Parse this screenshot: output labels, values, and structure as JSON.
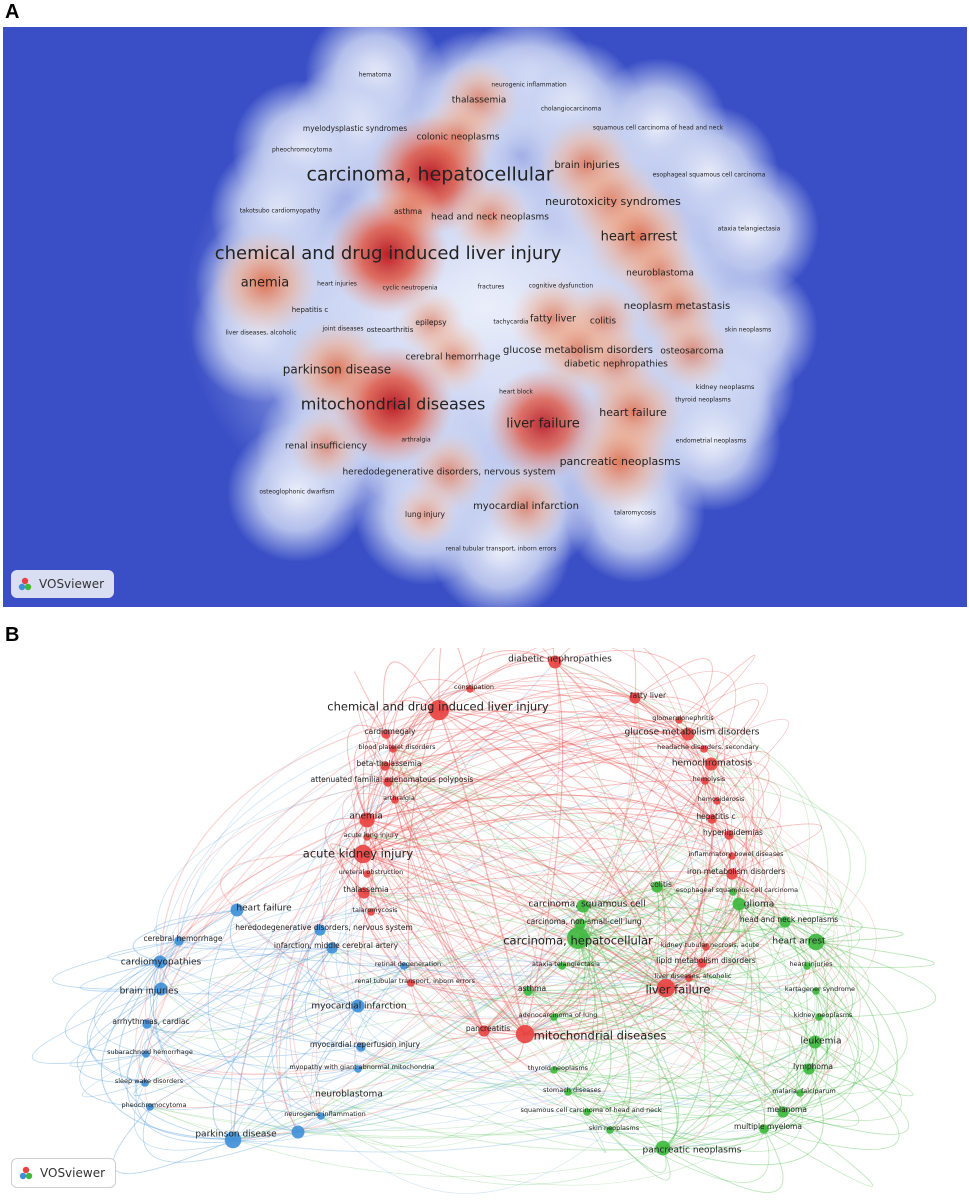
{
  "panel_a": {
    "letter": "A",
    "badge_label": "VOSviewer",
    "terms": [
      {
        "label": "hematoma",
        "size": 6,
        "density": 0.1
      },
      {
        "label": "neurogenic inflammation",
        "size": 6,
        "density": 0.1
      },
      {
        "label": "thalassemia",
        "size": 9,
        "density": 0.55
      },
      {
        "label": "cholangiocarcinoma",
        "size": 6,
        "density": 0.1
      },
      {
        "label": "myelodysplastic syndromes",
        "size": 7.5,
        "density": 0.2
      },
      {
        "label": "colonic neoplasms",
        "size": 9,
        "density": 0.55
      },
      {
        "label": "squamous cell carcinoma of head and neck",
        "size": 6,
        "density": 0.2
      },
      {
        "label": "pheochromocytoma",
        "size": 6,
        "density": 0.15
      },
      {
        "label": "brain injuries",
        "size": 10,
        "density": 0.7
      },
      {
        "label": "carcinoma, hepatocellular",
        "size": 19,
        "density": 1.0
      },
      {
        "label": "esophageal squamous cell carcinoma",
        "size": 6,
        "density": 0.2
      },
      {
        "label": "neurotoxicity syndromes",
        "size": 11,
        "density": 0.7
      },
      {
        "label": "takotsubo cardiomyopathy",
        "size": 6,
        "density": 0.15
      },
      {
        "label": "asthma",
        "size": 7.5,
        "density": 0.4
      },
      {
        "label": "head and neck neoplasms",
        "size": 9,
        "density": 0.55
      },
      {
        "label": "heart arrest",
        "size": 13,
        "density": 0.85
      },
      {
        "label": "ataxia telangiectasia",
        "size": 6,
        "density": 0.15
      },
      {
        "label": "chemical and drug induced liver injury",
        "size": 18,
        "density": 1.0
      },
      {
        "label": "neuroblastoma",
        "size": 9,
        "density": 0.55
      },
      {
        "label": "anemia",
        "size": 13,
        "density": 0.85
      },
      {
        "label": "heart injuries",
        "size": 6,
        "density": 0.2
      },
      {
        "label": "cyclic neutropenia",
        "size": 6,
        "density": 0.2
      },
      {
        "label": "fractures",
        "size": 6,
        "density": 0.2
      },
      {
        "label": "cognitive dysfunction",
        "size": 6,
        "density": 0.2
      },
      {
        "label": "hepatitis c",
        "size": 7,
        "density": 0.2
      },
      {
        "label": "neoplasm metastasis",
        "size": 10,
        "density": 0.6
      },
      {
        "label": "fatty liver",
        "size": 9.5,
        "density": 0.6
      },
      {
        "label": "colitis",
        "size": 9,
        "density": 0.5
      },
      {
        "label": "tachycardia",
        "size": 6,
        "density": 0.2
      },
      {
        "label": "epilepsy",
        "size": 7.5,
        "density": 0.4
      },
      {
        "label": "liver diseases, alcoholic",
        "size": 6,
        "density": 0.15
      },
      {
        "label": "joint diseases",
        "size": 6,
        "density": 0.15
      },
      {
        "label": "osteoarthritis",
        "size": 7,
        "density": 0.25
      },
      {
        "label": "skin neoplasms",
        "size": 6,
        "density": 0.15
      },
      {
        "label": "cerebral hemorrhage",
        "size": 9,
        "density": 0.45
      },
      {
        "label": "glucose metabolism disorders",
        "size": 10,
        "density": 0.6
      },
      {
        "label": "osteosarcoma",
        "size": 9,
        "density": 0.5
      },
      {
        "label": "parkinson disease",
        "size": 12,
        "density": 0.8
      },
      {
        "label": "diabetic nephropathies",
        "size": 9,
        "density": 0.5
      },
      {
        "label": "kidney neoplasms",
        "size": 6.5,
        "density": 0.15
      },
      {
        "label": "heart block",
        "size": 6,
        "density": 0.2
      },
      {
        "label": "mitochondrial diseases",
        "size": 16,
        "density": 1.0
      },
      {
        "label": "thyroid neoplasms",
        "size": 6,
        "density": 0.2
      },
      {
        "label": "heart failure",
        "size": 11,
        "density": 0.75
      },
      {
        "label": "liver failure",
        "size": 13,
        "density": 0.9
      },
      {
        "label": "renal insufficiency",
        "size": 9,
        "density": 0.45
      },
      {
        "label": "arthralgia",
        "size": 6,
        "density": 0.2
      },
      {
        "label": "endometrial neoplasms",
        "size": 6,
        "density": 0.2
      },
      {
        "label": "pancreatic neoplasms",
        "size": 11,
        "density": 0.8
      },
      {
        "label": "heredodegenerative disorders, nervous system",
        "size": 9,
        "density": 0.5
      },
      {
        "label": "osteoglophonic dwarfism",
        "size": 6,
        "density": 0.1
      },
      {
        "label": "myocardial infarction",
        "size": 10,
        "density": 0.55
      },
      {
        "label": "lung injury",
        "size": 7.5,
        "density": 0.35
      },
      {
        "label": "talaromycosis",
        "size": 6,
        "density": 0.15
      },
      {
        "label": "renal tubular transport, inborn errors",
        "size": 6,
        "density": 0.15
      }
    ]
  },
  "panel_b": {
    "letter": "B",
    "badge_label": "VOSviewer",
    "cluster_colors": {
      "red": "#e8413f",
      "green": "#3cb83c",
      "blue": "#3d8fd8"
    },
    "nodes": [
      {
        "label": "diabetic nephropathies",
        "cluster": "red",
        "weight": 5
      },
      {
        "label": "constipation",
        "cluster": "red",
        "weight": 2
      },
      {
        "label": "fatty liver",
        "cluster": "red",
        "weight": 4
      },
      {
        "label": "chemical and drug induced liver injury",
        "cluster": "red",
        "weight": 9
      },
      {
        "label": "glomerulonephritis",
        "cluster": "red",
        "weight": 2
      },
      {
        "label": "cardiomegaly",
        "cluster": "red",
        "weight": 3
      },
      {
        "label": "glucose metabolism disorders",
        "cluster": "red",
        "weight": 5
      },
      {
        "label": "blood platelet disorders",
        "cluster": "red",
        "weight": 2
      },
      {
        "label": "headache disorders, secondary",
        "cluster": "red",
        "weight": 2
      },
      {
        "label": "beta-thalassemia",
        "cluster": "red",
        "weight": 3
      },
      {
        "label": "hemochromatosis",
        "cluster": "red",
        "weight": 5
      },
      {
        "label": "attenuated familial adenomatous polyposis",
        "cluster": "red",
        "weight": 3
      },
      {
        "label": "hemolysis",
        "cluster": "red",
        "weight": 2
      },
      {
        "label": "arthralgia",
        "cluster": "red",
        "weight": 2
      },
      {
        "label": "hemosiderosis",
        "cluster": "red",
        "weight": 2
      },
      {
        "label": "anemia",
        "cluster": "red",
        "weight": 6
      },
      {
        "label": "hepatitis c",
        "cluster": "red",
        "weight": 3
      },
      {
        "label": "acute lung injury",
        "cluster": "red",
        "weight": 2
      },
      {
        "label": "hyperlipidemias",
        "cluster": "red",
        "weight": 3
      },
      {
        "label": "acute kidney injury",
        "cluster": "red",
        "weight": 8
      },
      {
        "label": "inflammatory bowel diseases",
        "cluster": "red",
        "weight": 2
      },
      {
        "label": "ureteral obstruction",
        "cluster": "red",
        "weight": 2
      },
      {
        "label": "iron metabolism disorders",
        "cluster": "red",
        "weight": 4
      },
      {
        "label": "thalassemia",
        "cluster": "red",
        "weight": 4
      },
      {
        "label": "colitis",
        "cluster": "green",
        "weight": 4
      },
      {
        "label": "esophageal squamous cell carcinoma",
        "cluster": "green",
        "weight": 2
      },
      {
        "label": "talaromycosis",
        "cluster": "red",
        "weight": 2
      },
      {
        "label": "carcinoma, squamous cell",
        "cluster": "green",
        "weight": 5
      },
      {
        "label": "glioma",
        "cluster": "green",
        "weight": 5
      },
      {
        "label": "heart failure",
        "cluster": "blue",
        "weight": 5
      },
      {
        "label": "heredodegenerative disorders, nervous system",
        "cluster": "blue",
        "weight": 4
      },
      {
        "label": "head and neck neoplasms",
        "cluster": "green",
        "weight": 4
      },
      {
        "label": "carcinoma, non-small-cell lung",
        "cluster": "green",
        "weight": 4
      },
      {
        "label": "cerebral hemorrhage",
        "cluster": "blue",
        "weight": 3
      },
      {
        "label": "carcinoma, hepatocellular",
        "cluster": "green",
        "weight": 10
      },
      {
        "label": "heart arrest",
        "cluster": "green",
        "weight": 7
      },
      {
        "label": "infarction, middle cerebral artery",
        "cluster": "blue",
        "weight": 4
      },
      {
        "label": "kidney tubular necrosis, acute",
        "cluster": "red",
        "weight": 2
      },
      {
        "label": "cardiomyopathies",
        "cluster": "blue",
        "weight": 5
      },
      {
        "label": "retinal degeneration",
        "cluster": "blue",
        "weight": 2
      },
      {
        "label": "ataxia telangiectasia",
        "cluster": "green",
        "weight": 2
      },
      {
        "label": "lipid metabolism disorders",
        "cluster": "red",
        "weight": 3
      },
      {
        "label": "heart injuries",
        "cluster": "green",
        "weight": 2
      },
      {
        "label": "renal tubular transport, inborn errors",
        "cluster": "red",
        "weight": 2
      },
      {
        "label": "liver diseases, alcoholic",
        "cluster": "red",
        "weight": 2
      },
      {
        "label": "brain injuries",
        "cluster": "blue",
        "weight": 5
      },
      {
        "label": "asthma",
        "cluster": "green",
        "weight": 3
      },
      {
        "label": "liver failure",
        "cluster": "red",
        "weight": 8
      },
      {
        "label": "kartagener syndrome",
        "cluster": "green",
        "weight": 2
      },
      {
        "label": "myocardial infarction",
        "cluster": "blue",
        "weight": 5
      },
      {
        "label": "arrhythmias, cardiac",
        "cluster": "blue",
        "weight": 3
      },
      {
        "label": "kidney neoplasms",
        "cluster": "green",
        "weight": 2
      },
      {
        "label": "adenocarcinoma of lung",
        "cluster": "green",
        "weight": 2
      },
      {
        "label": "pancreatitis",
        "cluster": "red",
        "weight": 4
      },
      {
        "label": "mitochondrial diseases",
        "cluster": "red",
        "weight": 8
      },
      {
        "label": "myocardial reperfusion injury",
        "cluster": "blue",
        "weight": 3
      },
      {
        "label": "leukemia",
        "cluster": "green",
        "weight": 5
      },
      {
        "label": "subarachnoid hemorrhage",
        "cluster": "blue",
        "weight": 2
      },
      {
        "label": "myopathy with giant abnormal mitochondria",
        "cluster": "blue",
        "weight": 2
      },
      {
        "label": "thyroid neoplasms",
        "cluster": "green",
        "weight": 2
      },
      {
        "label": "lymphoma",
        "cluster": "green",
        "weight": 4
      },
      {
        "label": "sleep wake disorders",
        "cluster": "blue",
        "weight": 2
      },
      {
        "label": "neuroblastoma",
        "cluster": "blue",
        "weight": 5
      },
      {
        "label": "stomach diseases",
        "cluster": "green",
        "weight": 2
      },
      {
        "label": "malaria, falciparum",
        "cluster": "green",
        "weight": 2
      },
      {
        "label": "pheochromocytoma",
        "cluster": "blue",
        "weight": 2
      },
      {
        "label": "melanoma",
        "cluster": "green",
        "weight": 4
      },
      {
        "label": "squamous cell carcinoma of head and neck",
        "cluster": "green",
        "weight": 2
      },
      {
        "label": "neurogenic inflammation",
        "cluster": "blue",
        "weight": 2
      },
      {
        "label": "skin neoplasms",
        "cluster": "green",
        "weight": 2
      },
      {
        "label": "multiple myeloma",
        "cluster": "green",
        "weight": 3
      },
      {
        "label": "parkinson disease",
        "cluster": "blue",
        "weight": 7
      },
      {
        "label": "pancreatic neoplasms",
        "cluster": "green",
        "weight": 6
      }
    ]
  }
}
